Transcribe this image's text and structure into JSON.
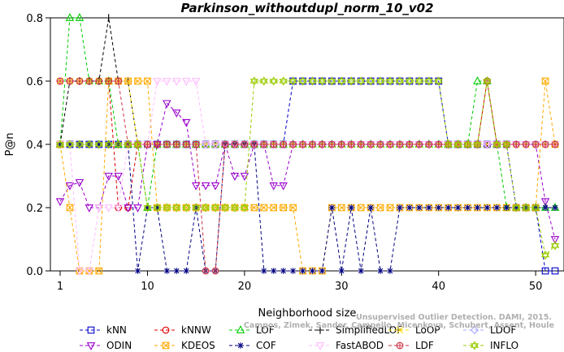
{
  "watermark": {
    "line1": "Unsupervised Outlier Detection. DAMI, 2015.",
    "line2": "Campos, Zimek, Sander, Campello, Micenkova, Schubert, Assent, Houle"
  },
  "chart_data": {
    "type": "line",
    "title": "Parkinson_withoutdupl_norm_10_v02",
    "xlabel": "Neighborhood size",
    "ylabel": "P@n",
    "xlim": [
      1,
      52
    ],
    "ylim": [
      0,
      0.8
    ],
    "xticks": [
      1,
      10,
      20,
      30,
      40,
      50
    ],
    "yticks": [
      0.0,
      0.2,
      0.4,
      0.6,
      0.8
    ],
    "ytick_labels": [
      "0.0",
      "0.2",
      "0.4",
      "0.6",
      "0.8"
    ],
    "grid": false,
    "legend_position": "bottom",
    "series": [
      {
        "name": "kNN",
        "color": "#0000cc",
        "marker": "square",
        "values": [
          0.4,
          0.4,
          0.4,
          0.4,
          0.4,
          0.4,
          0.4,
          0.4,
          0.4,
          0.4,
          0.4,
          0.4,
          0.4,
          0.4,
          0.4,
          0.4,
          0.4,
          0.4,
          0.4,
          0.4,
          0.4,
          0.4,
          0.4,
          0.4,
          0.6,
          0.6,
          0.6,
          0.6,
          0.6,
          0.6,
          0.6,
          0.6,
          0.6,
          0.6,
          0.6,
          0.6,
          0.6,
          0.6,
          0.6,
          0.6,
          0.4,
          0.4,
          0.4,
          0.4,
          0.4,
          0.4,
          0.4,
          0.2,
          0.2,
          0.2,
          0,
          0
        ]
      },
      {
        "name": "kNNW",
        "color": "#dd0000",
        "marker": "circle",
        "values": [
          0.6,
          0.6,
          0.6,
          0.6,
          0.6,
          0.6,
          0.2,
          0.2,
          0.4,
          0.4,
          0.4,
          0.4,
          0.4,
          0.4,
          0.4,
          0.4,
          0.4,
          0.4,
          0.4,
          0.4,
          0.4,
          0.4,
          0.4,
          0.4,
          0.4,
          0.4,
          0.4,
          0.4,
          0.4,
          0.4,
          0.4,
          0.4,
          0.4,
          0.4,
          0.4,
          0.4,
          0.4,
          0.4,
          0.4,
          0.4,
          0.4,
          0.4,
          0.4,
          0.4,
          0.6,
          0.4,
          0.4,
          0.4,
          0.4,
          0.4,
          0.4,
          0.4
        ]
      },
      {
        "name": "LOF",
        "color": "#00cc00",
        "marker": "triangle",
        "values": [
          0.4,
          0.8,
          0.8,
          0.6,
          0.6,
          0.6,
          0.4,
          0.4,
          0.4,
          0.2,
          0.4,
          0.4,
          0.4,
          0.4,
          0.4,
          0.4,
          0.4,
          0.4,
          0.4,
          0.4,
          0.4,
          0.4,
          0.4,
          0.4,
          0.4,
          0.4,
          0.4,
          0.4,
          0.4,
          0.4,
          0.4,
          0.4,
          0.4,
          0.4,
          0.4,
          0.4,
          0.4,
          0.4,
          0.4,
          0.4,
          0.4,
          0.4,
          0.4,
          0.6,
          0.6,
          0.4,
          0.2,
          0.2,
          0.2,
          0.2,
          0.2,
          0.2
        ]
      },
      {
        "name": "SimplifiedLOF",
        "color": "#000000",
        "marker": "plus",
        "values": [
          0.4,
          0.6,
          0.6,
          0.6,
          0.6,
          0.8,
          0.6,
          0.6,
          0.4,
          0.4,
          0.4,
          0.4,
          0.4,
          0.4,
          0.4,
          0.4,
          0.4,
          0.4,
          0.4,
          0.4,
          0.4,
          0.4,
          0.4,
          0.4,
          0.4,
          0.4,
          0.4,
          0.4,
          0.4,
          0.4,
          0.4,
          0.4,
          0.4,
          0.4,
          0.4,
          0.4,
          0.4,
          0.4,
          0.4,
          0.4,
          0.4,
          0.4,
          0.4,
          0.4,
          0.4,
          0.4,
          0.4,
          0.4,
          0.4,
          0.4,
          0.4,
          0.4
        ]
      },
      {
        "name": "LoOP",
        "color": "#ffdd00",
        "marker": "x",
        "values": [
          0.6,
          0.6,
          0.6,
          0.6,
          0.6,
          0.6,
          0.6,
          0.6,
          0.4,
          0.4,
          0.4,
          0.4,
          0.4,
          0.4,
          0.4,
          0.4,
          0.4,
          0.4,
          0.4,
          0.4,
          0.4,
          0.4,
          0.4,
          0.4,
          0.4,
          0.4,
          0.4,
          0.4,
          0.4,
          0.4,
          0.4,
          0.4,
          0.4,
          0.4,
          0.4,
          0.4,
          0.4,
          0.4,
          0.4,
          0.4,
          0.4,
          0.4,
          0.4,
          0.4,
          0.4,
          0.4,
          0.4,
          0.4,
          0.4,
          0.4,
          0.4,
          0.4
        ]
      },
      {
        "name": "LDOF",
        "color": "#aaaaff",
        "marker": "diamond",
        "values": [
          0.4,
          0.4,
          0.4,
          0.4,
          0.4,
          0.4,
          0.4,
          0.4,
          0.4,
          0.4,
          0.4,
          0.4,
          0.4,
          0.4,
          0.4,
          0.4,
          0.4,
          0.4,
          0.4,
          0.4,
          0.4,
          0.4,
          0.4,
          0.4,
          0.4,
          0.4,
          0.4,
          0.4,
          0.4,
          0.4,
          0.4,
          0.4,
          0.4,
          0.4,
          0.4,
          0.4,
          0.4,
          0.4,
          0.4,
          0.4,
          0.4,
          0.4,
          0.4,
          0.4,
          0.4,
          0.4,
          0.4,
          0.4,
          0.4,
          0.4,
          0.4,
          0.4
        ]
      },
      {
        "name": "ODIN",
        "color": "#9900cc",
        "marker": "triangle-down",
        "values": [
          0.22,
          0.27,
          0.28,
          0.2,
          0.2,
          0.3,
          0.3,
          0.2,
          0.2,
          0.4,
          0.4,
          0.53,
          0.5,
          0.47,
          0.27,
          0.27,
          0.27,
          0.4,
          0.3,
          0.3,
          0.4,
          0.4,
          0.27,
          0.27,
          0.4,
          0.4,
          0.4,
          0.4,
          0.4,
          0.4,
          0.4,
          0.4,
          0.4,
          0.4,
          0.4,
          0.4,
          0.4,
          0.4,
          0.4,
          0.4,
          0.4,
          0.4,
          0.4,
          0.4,
          0.4,
          0.4,
          0.4,
          0.4,
          0.4,
          0.4,
          0.22,
          0.1
        ]
      },
      {
        "name": "KDEOS",
        "color": "#ffaa00",
        "marker": "square-x",
        "values": [
          0.4,
          0.2,
          0,
          0,
          0,
          0.6,
          0.6,
          0.6,
          0.6,
          0.6,
          0.2,
          0.2,
          0.2,
          0.2,
          0.2,
          0.2,
          0.2,
          0.2,
          0.2,
          0.2,
          0.2,
          0.2,
          0.2,
          0.2,
          0.2,
          0,
          0,
          0,
          0.2,
          0.2,
          0.2,
          0.2,
          0.2,
          0.2,
          0.2,
          0.2,
          0.2,
          0.2,
          0.2,
          0.2,
          0.2,
          0.2,
          0.2,
          0.2,
          0.2,
          0.2,
          0.2,
          0.2,
          0.2,
          0.2,
          0.6,
          0.4
        ]
      },
      {
        "name": "COF",
        "color": "#000080",
        "marker": "asterisk",
        "values": [
          0.4,
          0.4,
          0.4,
          0.4,
          0.4,
          0.4,
          0.4,
          0.4,
          0,
          0.2,
          0.2,
          0,
          0,
          0,
          0.2,
          0,
          0,
          0.4,
          0.4,
          0.4,
          0.4,
          0,
          0,
          0,
          0,
          0,
          0,
          0,
          0.2,
          0,
          0.2,
          0,
          0.2,
          0,
          0,
          0.2,
          0.2,
          0.2,
          0.2,
          0.2,
          0.2,
          0.2,
          0.2,
          0.2,
          0.2,
          0.2,
          0.2,
          0.2,
          0.2,
          0.2,
          0.2,
          0.2
        ]
      },
      {
        "name": "FastABOD",
        "color": "#ffbbff",
        "marker": "triangle-down-open",
        "values": [
          0.4,
          0.4,
          0,
          0,
          0.2,
          0.2,
          0.2,
          0.4,
          0.4,
          0.4,
          0.6,
          0.6,
          0.6,
          0.6,
          0.6,
          0.4,
          0.4,
          0.4,
          0.4,
          0.4,
          0.4,
          0.4,
          0.4,
          0.4,
          0.4,
          0.4,
          0.4,
          0.4,
          0.4,
          0.4,
          0.4,
          0.4,
          0.4,
          0.4,
          0.4,
          0.4,
          0.4,
          0.4,
          0.4,
          0.4,
          0.4,
          0.4,
          0.4,
          0.4,
          0.4,
          0.4,
          0.4,
          0.4,
          0.4,
          0.4,
          0.4,
          0.4
        ]
      },
      {
        "name": "LDF",
        "color": "#cc3344",
        "marker": "circle-plus",
        "values": [
          0.6,
          0.6,
          0.6,
          0.6,
          0.6,
          0.6,
          0.6,
          0.4,
          0.4,
          0.4,
          0.4,
          0.4,
          0.4,
          0.4,
          0.4,
          0,
          0,
          0.4,
          0.4,
          0.4,
          0.4,
          0.4,
          0.4,
          0.4,
          0.4,
          0.4,
          0.4,
          0.4,
          0.4,
          0.4,
          0.4,
          0.4,
          0.4,
          0.4,
          0.4,
          0.4,
          0.4,
          0.4,
          0.4,
          0.4,
          0.4,
          0.4,
          0.4,
          0.4,
          0.6,
          0.4,
          0.4,
          0.4,
          0.4,
          0.4,
          0.4,
          0.4
        ]
      },
      {
        "name": "INFLO",
        "color": "#99cc00",
        "marker": "star",
        "values": [
          0.4,
          0.4,
          0.4,
          0.4,
          0.4,
          0.4,
          0.4,
          0.4,
          0.4,
          0.2,
          0.2,
          0.2,
          0.2,
          0.2,
          0.2,
          0.2,
          0.2,
          0.2,
          0.2,
          0.2,
          0.6,
          0.6,
          0.6,
          0.6,
          0.6,
          0.6,
          0.6,
          0.6,
          0.6,
          0.6,
          0.6,
          0.6,
          0.6,
          0.6,
          0.6,
          0.6,
          0.6,
          0.6,
          0.6,
          0.6,
          0.4,
          0.4,
          0.4,
          0.4,
          0.6,
          0.4,
          0.4,
          0.2,
          0.2,
          0.2,
          0.05,
          0.08
        ]
      }
    ]
  }
}
